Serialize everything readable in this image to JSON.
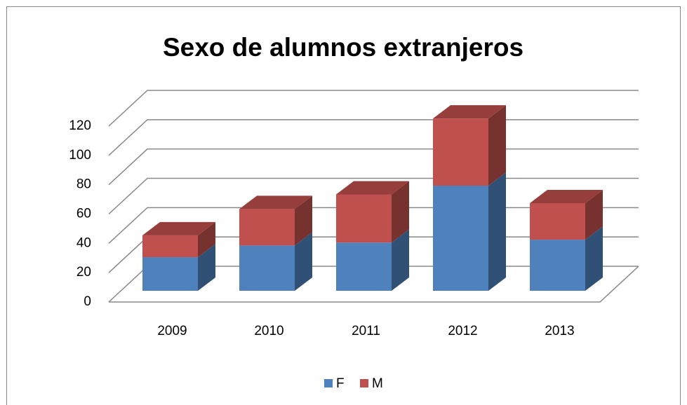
{
  "chart_data": {
    "type": "bar3d_stacked",
    "title": "Sexo de alumnos extranjeros",
    "categories": [
      "2009",
      "2010",
      "2011",
      "2012",
      "2013"
    ],
    "series": [
      {
        "name": "F",
        "color": "#4f81bd",
        "values": [
          23,
          31,
          33,
          72,
          35
        ]
      },
      {
        "name": "M",
        "color": "#c0504d",
        "values": [
          15,
          25,
          33,
          46,
          25
        ]
      }
    ],
    "ylim": [
      0,
      120
    ],
    "yticks": [
      0,
      20,
      40,
      60,
      80,
      100,
      120
    ],
    "grid": true,
    "legend": "bottom"
  }
}
